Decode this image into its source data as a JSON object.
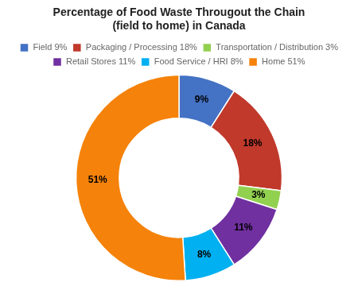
{
  "chart_data": {
    "type": "doughnut",
    "title": [
      "Percentage of Food Waste Througout the Chain",
      "(field to home) in Canada"
    ],
    "categories": [
      "Field 9%",
      "Packaging / Processing 18%",
      "Transportation / Distribution 3%",
      "Retail Stores 11%",
      "Food Service / HRI 8%",
      "Home 51%"
    ],
    "values": [
      9,
      18,
      3,
      11,
      8,
      51
    ],
    "value_labels": [
      "9%",
      "18%",
      "3%",
      "11%",
      "8%",
      "51%"
    ],
    "colors": [
      "#4472C4",
      "#C0392B",
      "#92D050",
      "#7030A0",
      "#00B0F0",
      "#F5820A"
    ],
    "data_labels": true,
    "legend": "top"
  }
}
